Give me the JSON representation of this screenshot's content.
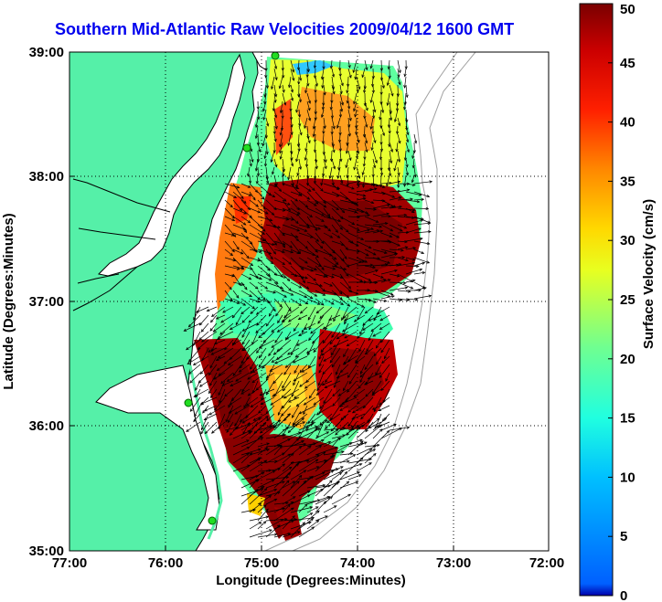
{
  "title": "Southern Mid-Atlantic Raw Velocities 2009/04/12 1600 GMT",
  "map": {
    "x_axis_label": "Longitude (Degrees:Minutes)",
    "y_axis_label": "Latitude (Degrees:Minutes)",
    "x_ticks": [
      "77:00",
      "76:00",
      "75:00",
      "74:00",
      "73:00",
      "72:00"
    ],
    "y_ticks": [
      "39:00",
      "38:00",
      "37:00",
      "36:00",
      "35:00"
    ],
    "lon_range": [
      -77,
      -72
    ],
    "lat_range": [
      35,
      39
    ],
    "grid": "dotted",
    "colors": {
      "land": "#55f0a8",
      "coastline": "#000000",
      "bathymetry_contour": "#a0a0a0",
      "vectors": "#000000",
      "stations": "#22dd22"
    }
  },
  "colorbar": {
    "label": "Surface Velocity (cm/s)",
    "ticks": [
      "0",
      "5",
      "10",
      "15",
      "20",
      "25",
      "30",
      "35",
      "40",
      "45",
      "50"
    ],
    "range": [
      0,
      50
    ],
    "colormap": "jet"
  }
}
